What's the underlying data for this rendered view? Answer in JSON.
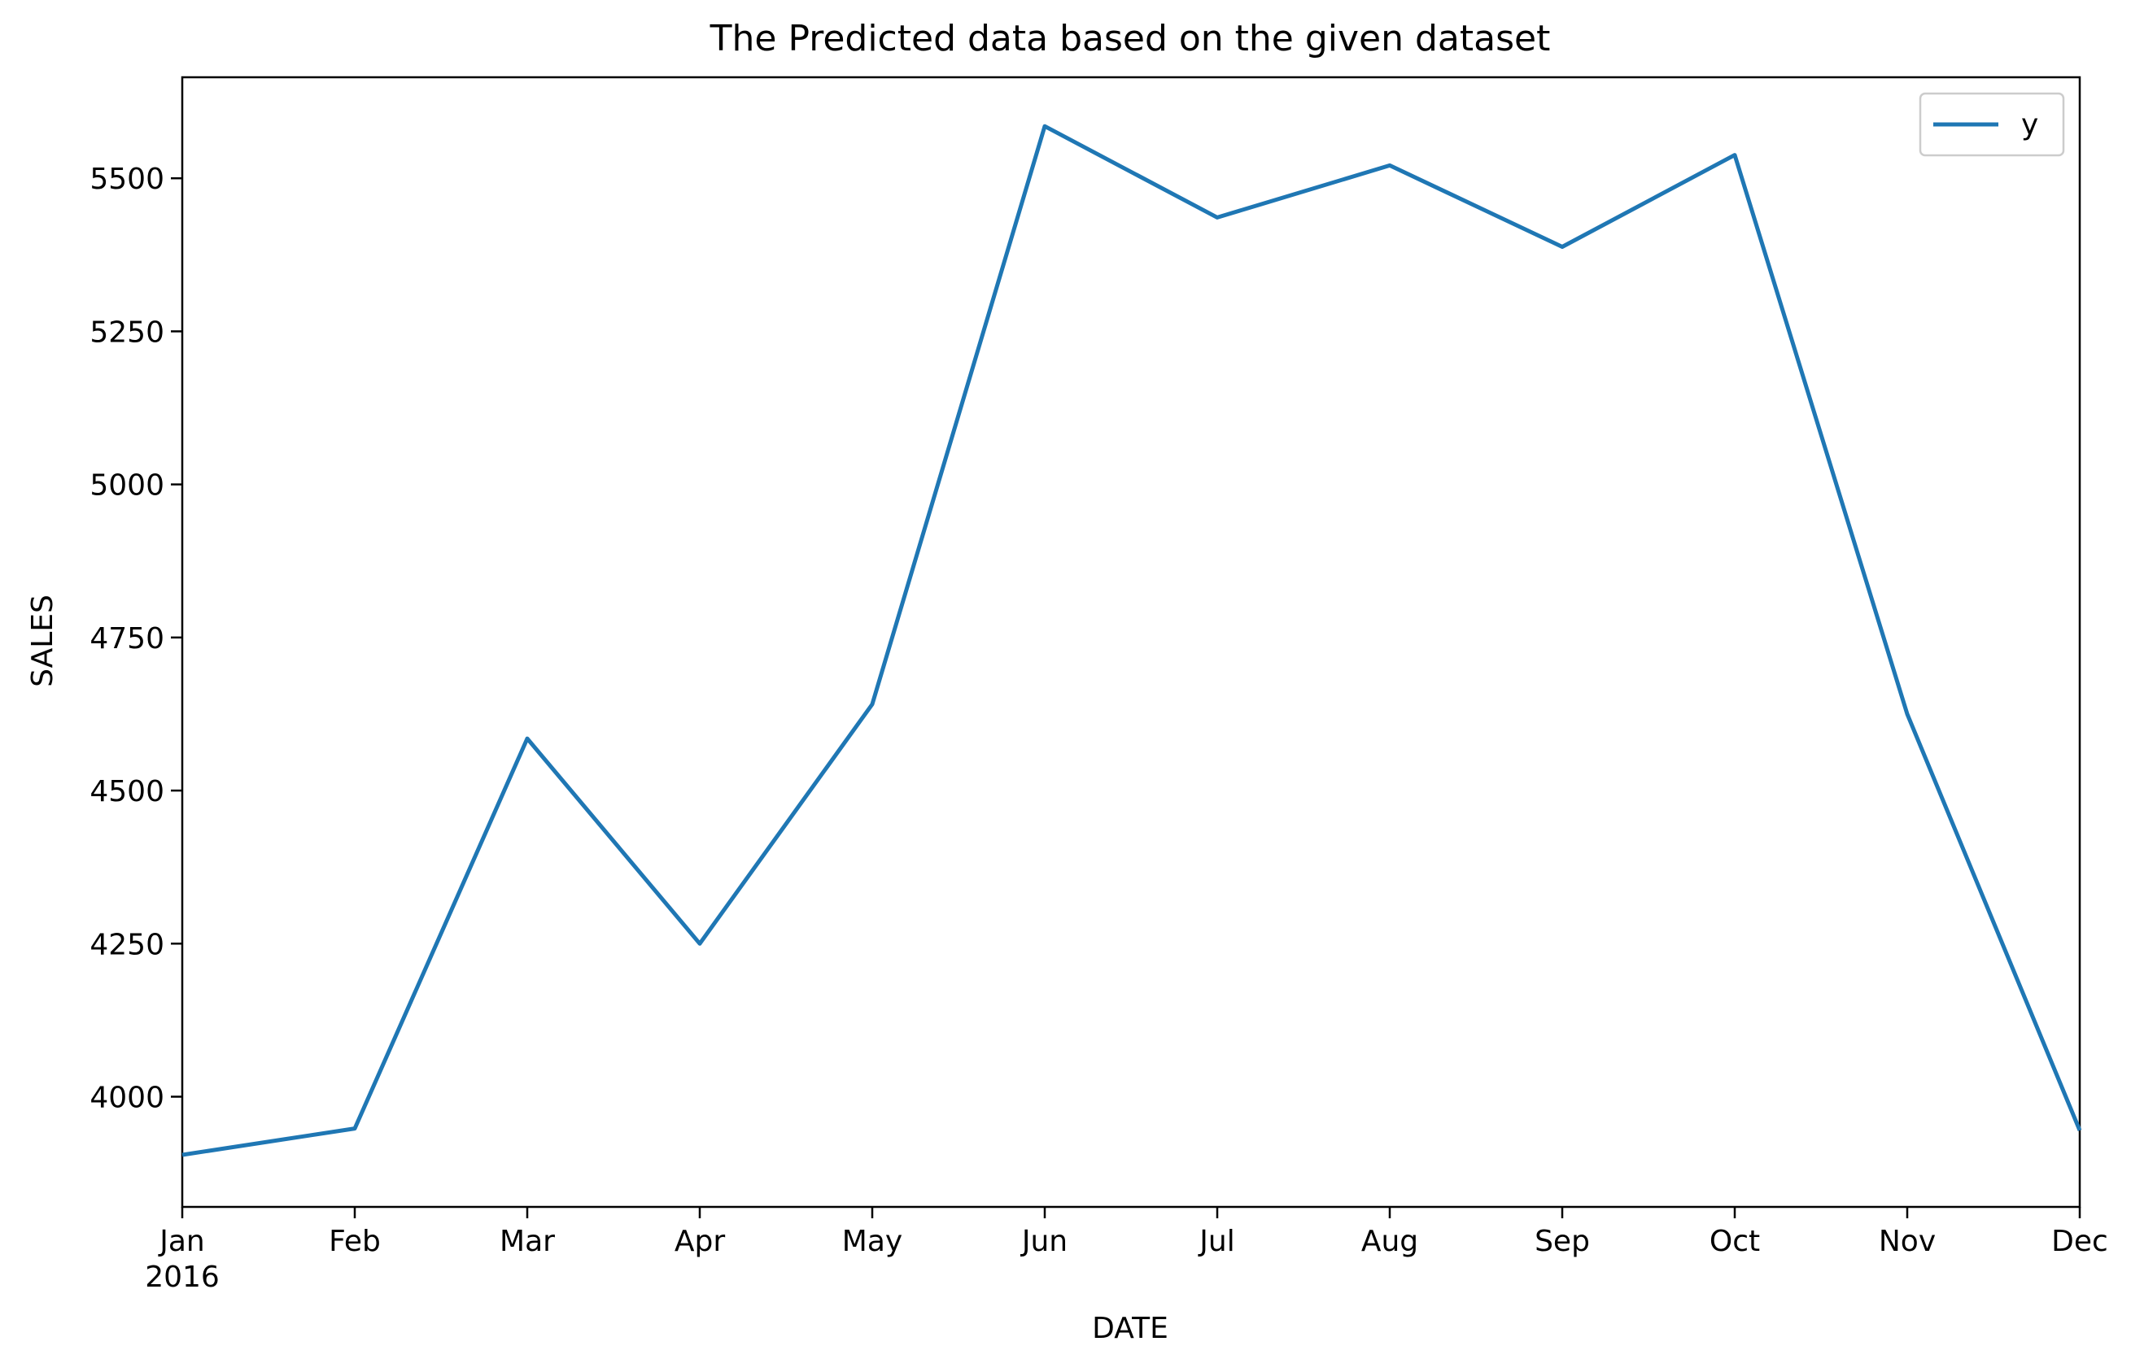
{
  "chart_data": {
    "type": "line",
    "title": "The Predicted data based on the given dataset",
    "xlabel": "DATE",
    "ylabel": "SALES",
    "x": [
      "2016-01",
      "2016-02",
      "2016-03",
      "2016-04",
      "2016-05",
      "2016-06",
      "2016-07",
      "2016-08",
      "2016-09",
      "2016-10",
      "2016-11",
      "2016-12"
    ],
    "x_tick_labels": [
      "Jan",
      "Feb",
      "Mar",
      "Apr",
      "May",
      "Jun",
      "Jul",
      "Aug",
      "Sep",
      "Oct",
      "Nov",
      "Dec"
    ],
    "x_year_label": "2016",
    "y_ticks": [
      "4000",
      "4250",
      "4500",
      "4750",
      "5000",
      "5250",
      "5500"
    ],
    "ylim": [
      3820,
      5665
    ],
    "series": [
      {
        "name": "y",
        "color": "#1f77b4",
        "values": [
          3905,
          3948,
          4585,
          4250,
          4641,
          5585,
          5436,
          5521,
          5388,
          5538,
          4625,
          3945
        ]
      }
    ],
    "legend_position": "top-right",
    "grid": false
  }
}
